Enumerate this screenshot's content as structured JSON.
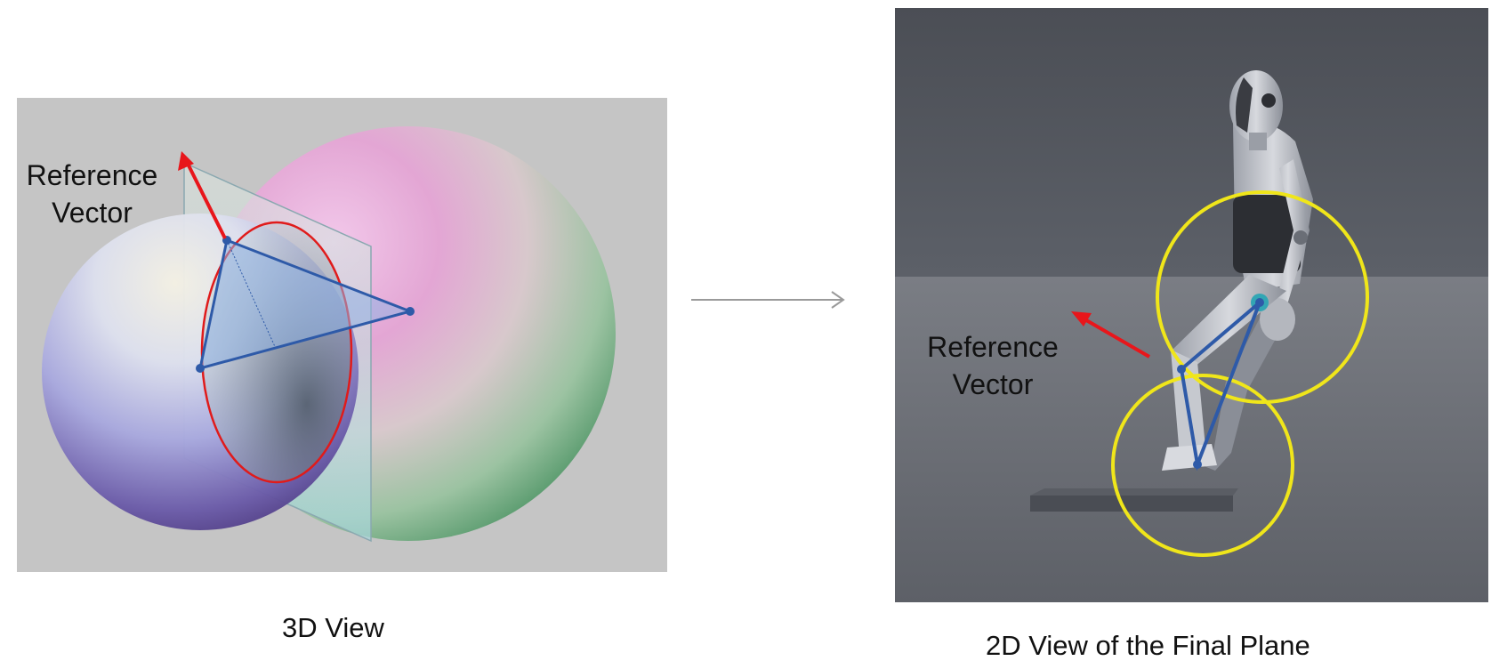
{
  "left_figure": {
    "caption": "3D View",
    "reference_label_line1": "Reference",
    "reference_label_line2": "Vector",
    "colors": {
      "background": "#c5c5c5",
      "plane": "#b8d8dc",
      "triangle": "#2e5aa8",
      "arrow": "#e8161b",
      "intersection_circle": "#e01b1b"
    },
    "icon": "sphere-intersection-diagram"
  },
  "right_figure": {
    "caption": "2D View of the Final Plane",
    "reference_label_line1": "Reference",
    "reference_label_line2": "Vector",
    "colors": {
      "wall": "#55585f",
      "floor": "#6c6f76",
      "circles": "#f0e61a",
      "triangle": "#2e5aa8",
      "arrow": "#e8161b"
    },
    "icon": "mannequin-leg-ik-render"
  },
  "transition": {
    "icon": "right-arrow-icon",
    "color": "#9a9a9a"
  }
}
